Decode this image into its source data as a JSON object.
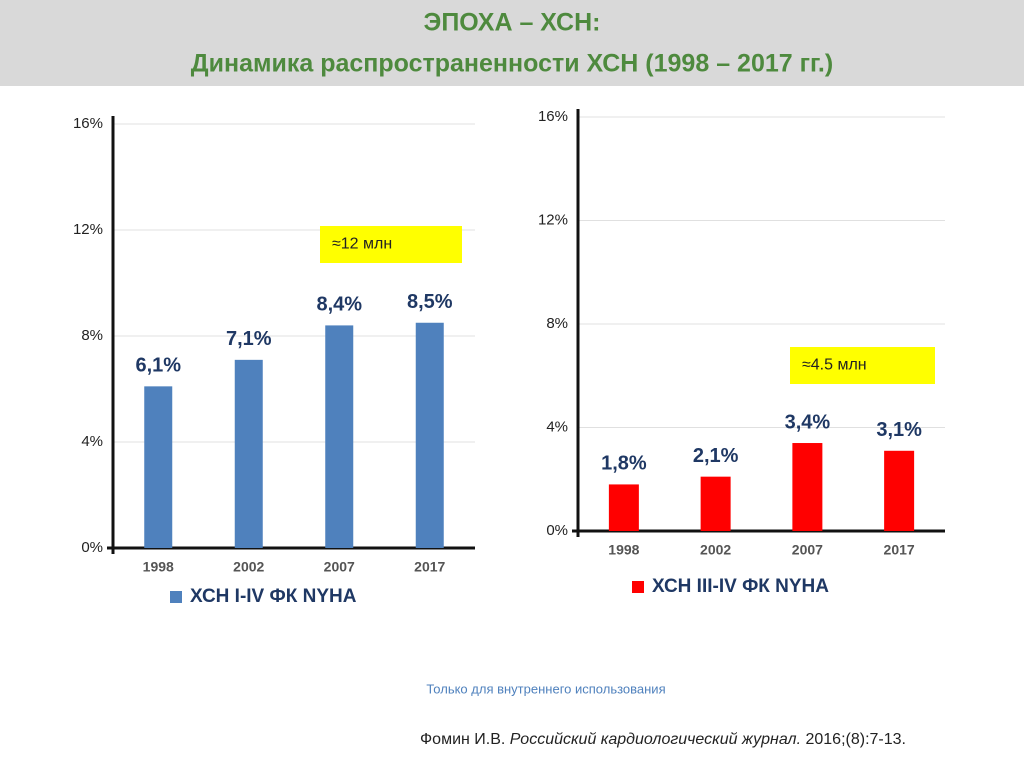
{
  "slide": {
    "title": [
      "ЭПОХА – ХСН:",
      "Динамика распространенности ХСН (1998 – 2017 гг.)"
    ],
    "note": "Только для внутреннего использования",
    "citation": [
      "Фомин И.В.",
      "Российский кардиологический журнал.",
      "2016;(8):7-13."
    ]
  },
  "chart_data": [
    {
      "type": "bar",
      "categories": [
        "1998",
        "2002",
        "2007",
        "2017"
      ],
      "series": [
        {
          "name": "ХСН I-IV ФК NYHA",
          "color": "#4f81bd",
          "values": [
            6.1,
            7.1,
            8.4,
            8.5
          ],
          "value_labels": [
            "6,1%",
            "7,1%",
            "8,4%",
            "8,5%"
          ]
        }
      ],
      "ylim": [
        0,
        16
      ],
      "yticks": [
        {
          "value": 0,
          "label": "0%"
        },
        {
          "value": 4,
          "label": "4%"
        },
        {
          "value": 8,
          "label": "8%"
        },
        {
          "value": 12,
          "label": "12%"
        },
        {
          "value": 16,
          "label": "16%"
        }
      ],
      "grid": true,
      "annotation": "≈12 млн"
    },
    {
      "type": "bar",
      "categories": [
        "1998",
        "2002",
        "2007",
        "2017"
      ],
      "series": [
        {
          "name": "ХСН III-IV ФК NYHA",
          "color": "#ff0000",
          "values": [
            1.8,
            2.1,
            3.4,
            3.1
          ],
          "value_labels": [
            "1,8%",
            "2,1%",
            "3,4%",
            "3,1%"
          ]
        }
      ],
      "ylim": [
        0,
        16
      ],
      "yticks": [
        {
          "value": 0,
          "label": "0%"
        },
        {
          "value": 4,
          "label": "4%"
        },
        {
          "value": 8,
          "label": "8%"
        },
        {
          "value": 12,
          "label": "12%"
        },
        {
          "value": 16,
          "label": "16%"
        }
      ],
      "grid": true,
      "annotation": "≈4.5 млн"
    }
  ]
}
